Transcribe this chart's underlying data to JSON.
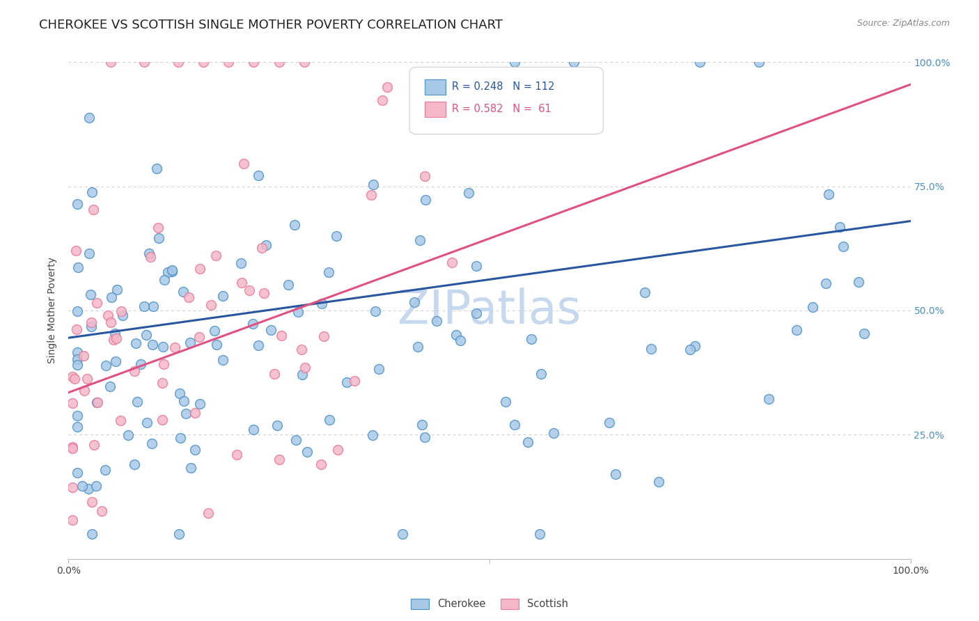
{
  "title": "CHEROKEE VS SCOTTISH SINGLE MOTHER POVERTY CORRELATION CHART",
  "source": "Source: ZipAtlas.com",
  "ylabel": "Single Mother Poverty",
  "xlim": [
    0,
    1
  ],
  "ylim": [
    0,
    1
  ],
  "legend_label1": "Cherokee",
  "legend_label2": "Scottish",
  "watermark": "ZIPatlas",
  "blue_fill": "#A8C8E8",
  "blue_edge": "#4A90C4",
  "pink_fill": "#F4B8C8",
  "pink_edge": "#E87898",
  "blue_line_color": "#2855A0",
  "pink_line_color": "#E05080",
  "blue_R": 0.248,
  "blue_N": 112,
  "pink_R": 0.582,
  "pink_N": 61,
  "blue_intercept": 0.445,
  "blue_slope": 0.235,
  "pink_intercept": 0.335,
  "pink_slope": 0.62,
  "title_fontsize": 13,
  "axis_fontsize": 10,
  "tick_fontsize": 10,
  "source_fontsize": 9,
  "background_color": "#FFFFFF",
  "grid_color": "#CCCCCC",
  "watermark_color": "#C5D8EE",
  "watermark_fontsize": 48
}
